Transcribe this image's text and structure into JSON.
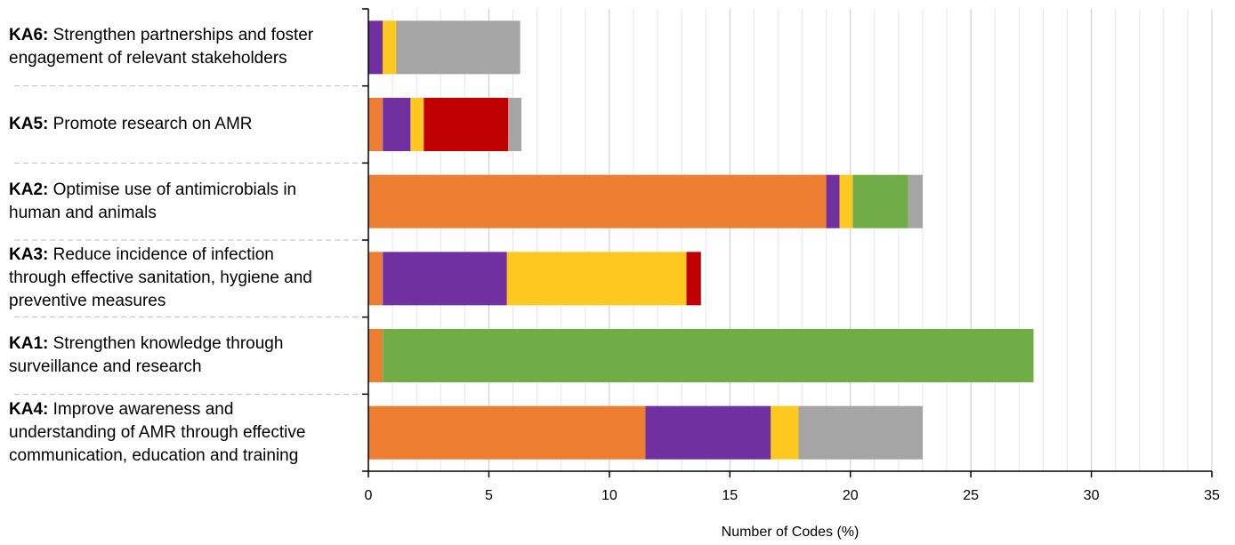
{
  "chart_data": {
    "type": "bar",
    "orientation": "horizontal",
    "stacked": true,
    "xlabel": "Number of Codes (%)",
    "xlim": [
      0,
      35
    ],
    "xticks": [
      0,
      5,
      10,
      15,
      20,
      25,
      30,
      35
    ],
    "grid": "vertical",
    "legend": "none",
    "series_colors": [
      "#ED7D31",
      "#7030A0",
      "#FFC820",
      "#C00000",
      "#70AD47",
      "#A5A5A5"
    ],
    "categories": [
      {
        "code": "KA6:",
        "text": "Strengthen partnerships and foster engagement of relevant stakeholders",
        "lines": [
          "Strengthen partnerships and foster",
          "engagement of relevant stakeholders"
        ],
        "values": [
          0,
          0.6,
          0.55,
          0,
          0,
          5.15
        ]
      },
      {
        "code": "KA5:",
        "text": "Promote research on AMR",
        "lines": [
          "Promote research on AMR"
        ],
        "values": [
          0.6,
          1.15,
          0.55,
          3.5,
          0,
          0.55
        ]
      },
      {
        "code": "KA2:",
        "text": "Optimise use of antimicrobials in human and animals",
        "lines": [
          "Optimise use of antimicrobials in",
          "human and animals"
        ],
        "values": [
          19.0,
          0.55,
          0.55,
          0,
          2.3,
          0.6
        ]
      },
      {
        "code": "KA3:",
        "text": "Reduce incidence of infection through effective sanitation, hygiene and preventive measures",
        "lines": [
          "Reduce incidence of infection",
          "through effective sanitation, hygiene and",
          "preventive measures"
        ],
        "values": [
          0.6,
          5.15,
          7.45,
          0.6,
          0,
          0
        ]
      },
      {
        "code": "KA1:",
        "text": "Strengthen knowledge through surveillance and research",
        "lines": [
          "Strengthen knowledge through",
          "surveillance and research"
        ],
        "values": [
          0.6,
          0,
          0,
          0,
          27.0,
          0
        ]
      },
      {
        "code": "KA4:",
        "text": "Improve awareness and understanding of AMR through effective communication, education and training",
        "lines": [
          "Improve awareness and",
          "understanding of AMR through effective",
          "communication, education and training"
        ],
        "values": [
          11.5,
          5.2,
          1.15,
          0,
          0,
          5.15
        ]
      }
    ]
  }
}
